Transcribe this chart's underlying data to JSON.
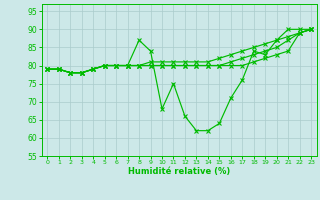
{
  "xlabel": "Humidité relative (%)",
  "background_color": "#cce8e8",
  "grid_color": "#aacccc",
  "line_color": "#00bb00",
  "xlim": [
    -0.5,
    23.5
  ],
  "ylim": [
    55,
    97
  ],
  "yticks": [
    55,
    60,
    65,
    70,
    75,
    80,
    85,
    90,
    95
  ],
  "xticks": [
    0,
    1,
    2,
    3,
    4,
    5,
    6,
    7,
    8,
    9,
    10,
    11,
    12,
    13,
    14,
    15,
    16,
    17,
    18,
    19,
    20,
    21,
    22,
    23
  ],
  "series": [
    [
      79,
      79,
      78,
      78,
      79,
      80,
      80,
      80,
      87,
      84,
      68,
      75,
      66,
      62,
      62,
      64,
      71,
      76,
      84,
      83,
      87,
      90,
      90,
      90
    ],
    [
      79,
      79,
      78,
      78,
      79,
      80,
      80,
      80,
      80,
      81,
      81,
      81,
      81,
      81,
      81,
      82,
      83,
      84,
      85,
      86,
      87,
      88,
      89,
      90
    ],
    [
      79,
      79,
      78,
      78,
      79,
      80,
      80,
      80,
      80,
      80,
      80,
      80,
      80,
      80,
      80,
      80,
      81,
      82,
      83,
      84,
      85,
      87,
      89,
      90
    ],
    [
      79,
      79,
      78,
      78,
      79,
      80,
      80,
      80,
      80,
      80,
      80,
      80,
      80,
      80,
      80,
      80,
      80,
      80,
      81,
      82,
      83,
      84,
      89,
      90
    ]
  ]
}
